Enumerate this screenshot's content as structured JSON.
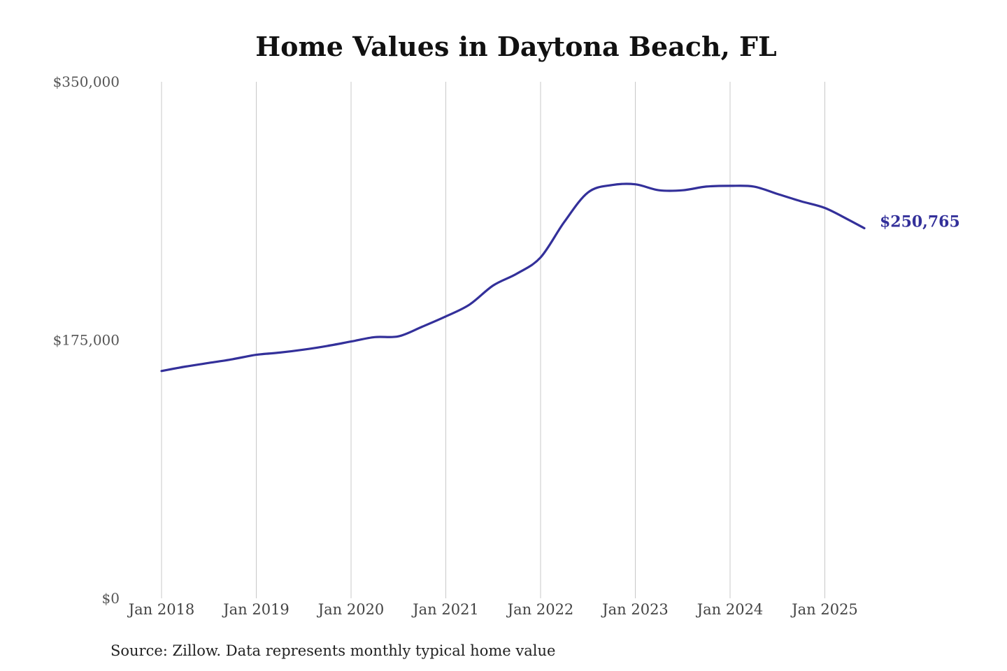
{
  "chart_data": {
    "type": "line",
    "title": "Home Values in Daytona Beach, FL",
    "xlabel": "",
    "ylabel": "",
    "ylim": [
      0,
      350000
    ],
    "y_ticks": [
      {
        "value": 350000,
        "label": "$350,000"
      },
      {
        "value": 175000,
        "label": "$175,000"
      },
      {
        "value": 0,
        "label": "$0"
      }
    ],
    "x_ticks": [
      {
        "value": "2018-01",
        "label": "Jan 2018"
      },
      {
        "value": "2019-01",
        "label": "Jan 2019"
      },
      {
        "value": "2020-01",
        "label": "Jan 2020"
      },
      {
        "value": "2021-01",
        "label": "Jan 2021"
      },
      {
        "value": "2022-01",
        "label": "Jan 2022"
      },
      {
        "value": "2023-01",
        "label": "Jan 2023"
      },
      {
        "value": "2024-01",
        "label": "Jan 2024"
      },
      {
        "value": "2025-01",
        "label": "Jan 2025"
      }
    ],
    "x_range": [
      "2018-01",
      "2025-06"
    ],
    "grid": "vertical",
    "legend": "none",
    "series": [
      {
        "color": "#33309a",
        "end_label": "$250,765",
        "points": [
          {
            "x": "2018-01",
            "y": 154000
          },
          {
            "x": "2018-04",
            "y": 157000
          },
          {
            "x": "2018-07",
            "y": 159500
          },
          {
            "x": "2018-10",
            "y": 162000
          },
          {
            "x": "2019-01",
            "y": 165000
          },
          {
            "x": "2019-04",
            "y": 166500
          },
          {
            "x": "2019-07",
            "y": 168500
          },
          {
            "x": "2019-10",
            "y": 171000
          },
          {
            "x": "2020-01",
            "y": 174000
          },
          {
            "x": "2020-04",
            "y": 177000
          },
          {
            "x": "2020-07",
            "y": 177500
          },
          {
            "x": "2020-10",
            "y": 184000
          },
          {
            "x": "2021-01",
            "y": 191000
          },
          {
            "x": "2021-04",
            "y": 199000
          },
          {
            "x": "2021-07",
            "y": 212000
          },
          {
            "x": "2021-10",
            "y": 220000
          },
          {
            "x": "2022-01",
            "y": 231000
          },
          {
            "x": "2022-04",
            "y": 255000
          },
          {
            "x": "2022-07",
            "y": 275000
          },
          {
            "x": "2022-10",
            "y": 280000
          },
          {
            "x": "2023-01",
            "y": 280500
          },
          {
            "x": "2023-04",
            "y": 276500
          },
          {
            "x": "2023-07",
            "y": 276500
          },
          {
            "x": "2023-10",
            "y": 279000
          },
          {
            "x": "2024-01",
            "y": 279500
          },
          {
            "x": "2024-04",
            "y": 279000
          },
          {
            "x": "2024-07",
            "y": 274000
          },
          {
            "x": "2024-10",
            "y": 269000
          },
          {
            "x": "2025-01",
            "y": 264500
          },
          {
            "x": "2025-04",
            "y": 256500
          },
          {
            "x": "2025-06",
            "y": 250765
          }
        ]
      }
    ],
    "source_note": "Source: Zillow. Data represents monthly typical home value"
  }
}
